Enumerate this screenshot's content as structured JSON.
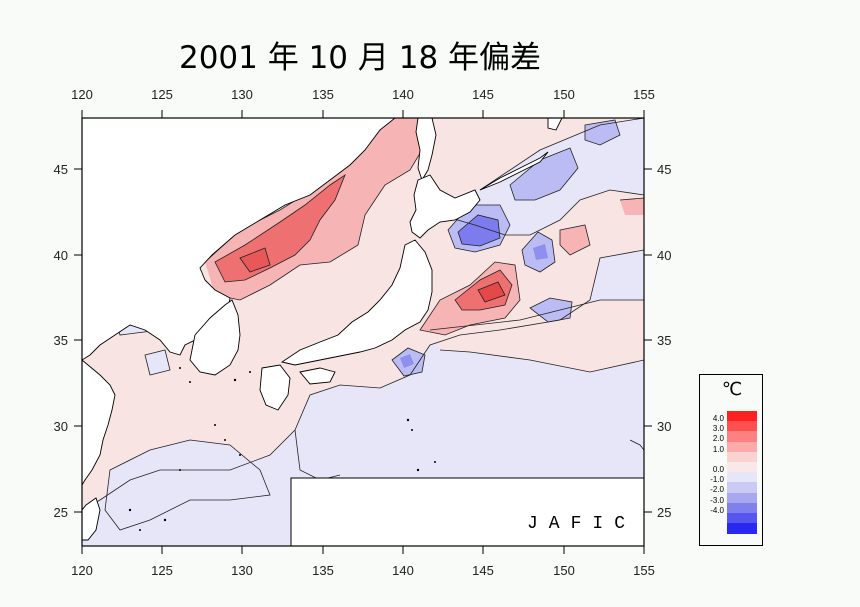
{
  "title": "2001 年 10 月 18 年偏差",
  "credit": "JAFIC",
  "axes": {
    "lon_ticks": [
      "120",
      "125",
      "130",
      "135",
      "140",
      "145",
      "150",
      "155"
    ],
    "lat_ticks": [
      "45",
      "40",
      "35",
      "30",
      "25"
    ],
    "lon_range": [
      120,
      155
    ],
    "lat_range": [
      23,
      48
    ]
  },
  "legend": {
    "unit": "℃",
    "labels": [
      "4.0",
      "3.0",
      "2.0",
      "1.0",
      "0.0",
      "-1.0",
      "-2.0",
      "-3.0",
      "-4.0"
    ],
    "colors": [
      "#ff2020",
      "#ff5050",
      "#ff8080",
      "#fcaaaa",
      "#fbd2d2",
      "#f8e8e8",
      "#e6e6f8",
      "#cacaf4",
      "#a8a8f0",
      "#8080ec",
      "#5656ee",
      "#2828f0"
    ]
  },
  "colors": {
    "background": "#f8fbf8",
    "land": "#ffffff",
    "warm_weak": "#f9e4e4",
    "warm_mid": "#f6b4b4",
    "warm_strong": "#ee7070",
    "cool_weak": "#e6e6f8",
    "cool_mid": "#bcbcf4",
    "cool_strong": "#7c7cee"
  }
}
